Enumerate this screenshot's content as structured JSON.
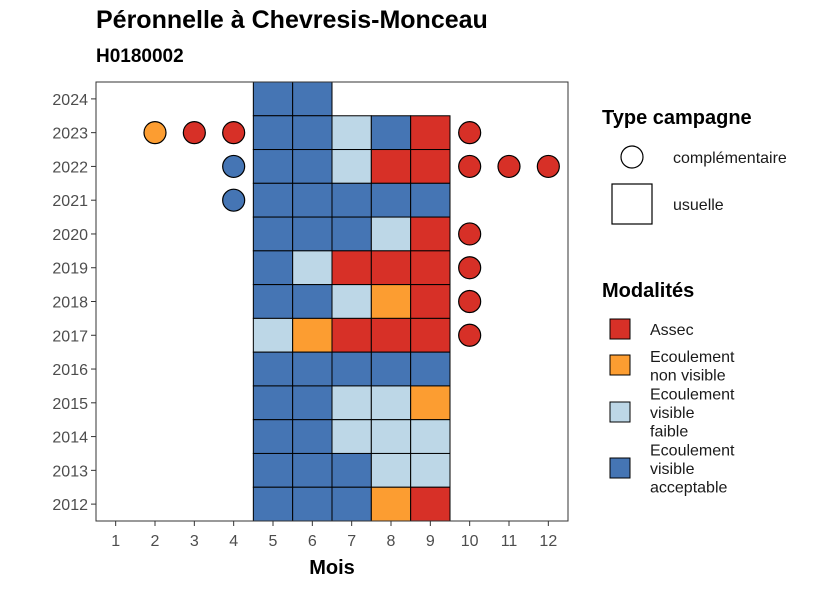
{
  "title": "Péronnelle à Chevresis-Monceau",
  "subtitle": "H0180002",
  "colors": {
    "assec": "#D73027",
    "ecoulement_non_visible": "#FC9D31",
    "ecoulement_visible_faible": "#BDD7E7",
    "ecoulement_visible_acceptable": "#4575B4"
  },
  "legend": {
    "type_title": "Type campagne",
    "type_items": [
      {
        "label": "complémentaire",
        "shape": "circle"
      },
      {
        "label": "usuelle",
        "shape": "square"
      }
    ],
    "mod_title": "Modalités",
    "mod_items": [
      {
        "key": "A",
        "lines": [
          "Assec"
        ],
        "color": "#D73027"
      },
      {
        "key": "N",
        "lines": [
          "Ecoulement",
          "non visible"
        ],
        "color": "#FC9D31"
      },
      {
        "key": "F",
        "lines": [
          "Ecoulement",
          "visible",
          "faible"
        ],
        "color": "#BDD7E7"
      },
      {
        "key": "V",
        "lines": [
          "Ecoulement",
          "visible",
          "acceptable"
        ],
        "color": "#4575B4"
      }
    ]
  },
  "chart_data": {
    "type": "heatmap",
    "xlabel": "Mois",
    "ylabel": "",
    "x_ticks": [
      1,
      2,
      3,
      4,
      5,
      6,
      7,
      8,
      9,
      10,
      11,
      12
    ],
    "y_ticks": [
      2012,
      2013,
      2014,
      2015,
      2016,
      2017,
      2018,
      2019,
      2020,
      2021,
      2022,
      2023,
      2024
    ],
    "xlim": [
      0.5,
      12.5
    ],
    "ylim": [
      2011.5,
      2024.5
    ],
    "usuelle": [
      {
        "year": 2024,
        "months": {
          "5": "V",
          "6": "V"
        }
      },
      {
        "year": 2023,
        "months": {
          "5": "V",
          "6": "V",
          "7": "F",
          "8": "V",
          "9": "A"
        }
      },
      {
        "year": 2022,
        "months": {
          "5": "V",
          "6": "V",
          "7": "F",
          "8": "A",
          "9": "A"
        }
      },
      {
        "year": 2021,
        "months": {
          "5": "V",
          "6": "V",
          "7": "V",
          "8": "V",
          "9": "V"
        }
      },
      {
        "year": 2020,
        "months": {
          "5": "V",
          "6": "V",
          "7": "V",
          "8": "F",
          "9": "A"
        }
      },
      {
        "year": 2019,
        "months": {
          "5": "V",
          "6": "F",
          "7": "A",
          "8": "A",
          "9": "A"
        }
      },
      {
        "year": 2018,
        "months": {
          "5": "V",
          "6": "V",
          "7": "F",
          "8": "N",
          "9": "A"
        }
      },
      {
        "year": 2017,
        "months": {
          "5": "F",
          "6": "N",
          "7": "A",
          "8": "A",
          "9": "A"
        }
      },
      {
        "year": 2016,
        "months": {
          "5": "V",
          "6": "V",
          "7": "V",
          "8": "V",
          "9": "V"
        }
      },
      {
        "year": 2015,
        "months": {
          "5": "V",
          "6": "V",
          "7": "F",
          "8": "F",
          "9": "N"
        }
      },
      {
        "year": 2014,
        "months": {
          "5": "V",
          "6": "V",
          "7": "F",
          "8": "F",
          "9": "F"
        }
      },
      {
        "year": 2013,
        "months": {
          "5": "V",
          "6": "V",
          "7": "V",
          "8": "F",
          "9": "F"
        }
      },
      {
        "year": 2012,
        "months": {
          "5": "V",
          "6": "V",
          "7": "V",
          "8": "N",
          "9": "A"
        }
      }
    ],
    "complementaire": [
      {
        "year": 2023,
        "month": 2,
        "value": "N"
      },
      {
        "year": 2023,
        "month": 3,
        "value": "A"
      },
      {
        "year": 2023,
        "month": 4,
        "value": "A"
      },
      {
        "year": 2023,
        "month": 10,
        "value": "A"
      },
      {
        "year": 2022,
        "month": 4,
        "value": "V"
      },
      {
        "year": 2022,
        "month": 10,
        "value": "A"
      },
      {
        "year": 2022,
        "month": 11,
        "value": "A"
      },
      {
        "year": 2022,
        "month": 12,
        "value": "A"
      },
      {
        "year": 2021,
        "month": 4,
        "value": "V"
      },
      {
        "year": 2020,
        "month": 10,
        "value": "A"
      },
      {
        "year": 2019,
        "month": 10,
        "value": "A"
      },
      {
        "year": 2018,
        "month": 10,
        "value": "A"
      },
      {
        "year": 2017,
        "month": 10,
        "value": "A"
      }
    ]
  }
}
